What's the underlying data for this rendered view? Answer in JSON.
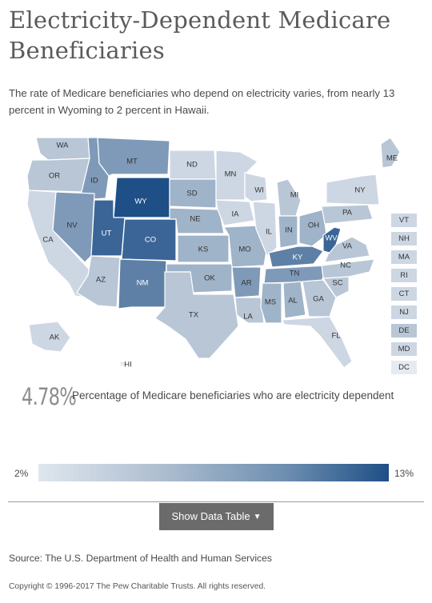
{
  "title": "Electricity-Dependent Medicare Beneficiaries",
  "description": "The rate of Medicare beneficiaries who depend on electricity varies, from nearly 13 percent in Wyoming to 2 percent in Hawaii.",
  "stat": {
    "value": "4.78%",
    "label": "Percentage of Medicare beneficiaries who are electricity dependent"
  },
  "legend": {
    "min_label": "2%",
    "max_label": "13%",
    "color_low": "#dfe6ee",
    "color_high": "#1e4f86"
  },
  "button": {
    "label": "Show Data Table",
    "icon": "chevron-down-icon"
  },
  "source": "Source: The U.S. Department of Health and Human Services",
  "copyright": "Copyright © 1996-2017 The Pew Charitable Trusts. All rights reserved.",
  "map": {
    "states": [
      {
        "code": "WA",
        "shade": 2
      },
      {
        "code": "OR",
        "shade": 2
      },
      {
        "code": "CA",
        "shade": 1
      },
      {
        "code": "ID",
        "shade": 4
      },
      {
        "code": "NV",
        "shade": 4
      },
      {
        "code": "MT",
        "shade": 4
      },
      {
        "code": "WY",
        "shade": 7
      },
      {
        "code": "UT",
        "shade": 6
      },
      {
        "code": "AZ",
        "shade": 2
      },
      {
        "code": "CO",
        "shade": 6
      },
      {
        "code": "NM",
        "shade": 5
      },
      {
        "code": "ND",
        "shade": 1
      },
      {
        "code": "SD",
        "shade": 3
      },
      {
        "code": "NE",
        "shade": 3
      },
      {
        "code": "KS",
        "shade": 3
      },
      {
        "code": "OK",
        "shade": 3
      },
      {
        "code": "TX",
        "shade": 2
      },
      {
        "code": "MN",
        "shade": 1
      },
      {
        "code": "IA",
        "shade": 1
      },
      {
        "code": "MO",
        "shade": 3
      },
      {
        "code": "AR",
        "shade": 4
      },
      {
        "code": "LA",
        "shade": 2
      },
      {
        "code": "WI",
        "shade": 1
      },
      {
        "code": "IL",
        "shade": 1
      },
      {
        "code": "MI",
        "shade": 2
      },
      {
        "code": "IN",
        "shade": 3
      },
      {
        "code": "OH",
        "shade": 3
      },
      {
        "code": "KY",
        "shade": 5
      },
      {
        "code": "TN",
        "shade": 4
      },
      {
        "code": "MS",
        "shade": 3
      },
      {
        "code": "AL",
        "shade": 3
      },
      {
        "code": "GA",
        "shade": 2
      },
      {
        "code": "FL",
        "shade": 1
      },
      {
        "code": "SC",
        "shade": 2
      },
      {
        "code": "NC",
        "shade": 2
      },
      {
        "code": "VA",
        "shade": 2
      },
      {
        "code": "WV",
        "shade": 6
      },
      {
        "code": "PA",
        "shade": 2
      },
      {
        "code": "NY",
        "shade": 1
      },
      {
        "code": "ME",
        "shade": 2
      },
      {
        "code": "AK",
        "shade": 1
      },
      {
        "code": "HI",
        "shade": 0
      }
    ],
    "small_states": [
      {
        "code": "VT",
        "shade": 1
      },
      {
        "code": "NH",
        "shade": 1
      },
      {
        "code": "MA",
        "shade": 1
      },
      {
        "code": "RI",
        "shade": 1
      },
      {
        "code": "CT",
        "shade": 1
      },
      {
        "code": "NJ",
        "shade": 1
      },
      {
        "code": "DE",
        "shade": 2
      },
      {
        "code": "MD",
        "shade": 1
      },
      {
        "code": "DC",
        "shade": 0
      }
    ],
    "shade_colors": [
      "#e5ebf1",
      "#cdd7e3",
      "#b8c6d6",
      "#9fb3c9",
      "#7f9ab8",
      "#5e80a6",
      "#3a6596",
      "#1e4f86"
    ]
  }
}
